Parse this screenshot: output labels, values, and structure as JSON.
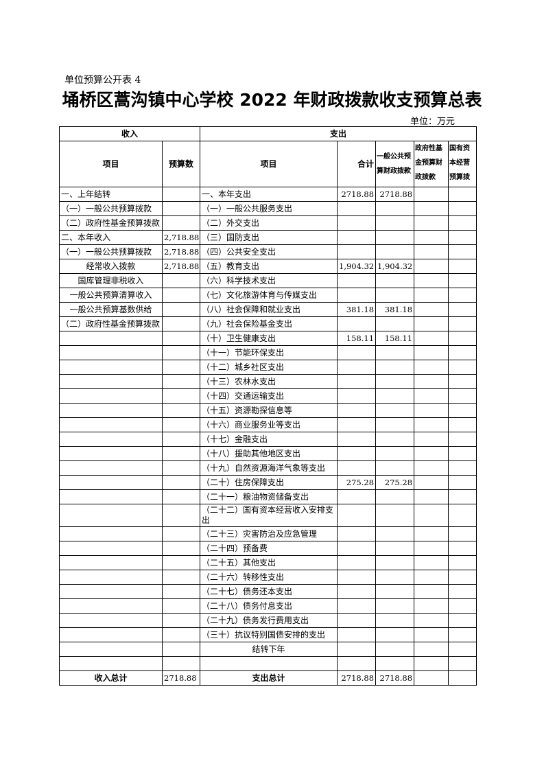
{
  "doc": {
    "tag": "单位预算公开表 4",
    "title": "埇桥区蒿沟镇中心学校 2022 年财政拨款收支预算总表",
    "unit": "单位：万元"
  },
  "headers": {
    "income": "收入",
    "expense": "支出",
    "income_item": "项目",
    "income_amount": "预算数",
    "expense_item": "项目",
    "total": "合计",
    "general": "一般公共预算财政拨款",
    "fund": "政府性基金预算财政拨款",
    "state": "国有资本经营预算拨"
  },
  "rows": [
    {
      "in_item": "一、上年结转",
      "in_amt": "",
      "ex_item": "一、本年支出",
      "total": "2718.88",
      "general": "2718.88"
    },
    {
      "in_item": "（一）一般公共预算拨款",
      "in_amt": "",
      "ex_item": "（一）一般公共服务支出",
      "total": "",
      "general": ""
    },
    {
      "in_item": "（二）政府性基金预算拨款",
      "in_amt": "",
      "ex_item": "（二）外交支出",
      "total": "",
      "general": ""
    },
    {
      "in_item": "二、本年收入",
      "in_amt": "2,718.88",
      "ex_item": "（三）国防支出",
      "total": "",
      "general": ""
    },
    {
      "in_item": "（一）一般公共预算拨款",
      "in_amt": "2,718.88",
      "ex_item": "（四）公共安全支出",
      "total": "",
      "general": ""
    },
    {
      "in_item": "经常收入拨款",
      "in_amt": "2,718.88",
      "ex_item": "（五）教育支出",
      "total": "1,904.32",
      "general": "1,904.32",
      "center": true
    },
    {
      "in_item": "国库管理非税收入",
      "in_amt": "",
      "ex_item": "（六）科学技术支出",
      "total": "",
      "general": "",
      "center": true
    },
    {
      "in_item": "一般公共预算清算收入",
      "in_amt": "",
      "ex_item": "（七）文化旅游体育与传媒支出",
      "total": "",
      "general": "",
      "center": true
    },
    {
      "in_item": "一般公共预算基数供给",
      "in_amt": "",
      "ex_item": "（八）社会保障和就业支出",
      "total": "381.18",
      "general": "381.18",
      "center": true
    },
    {
      "in_item": "（二）政府性基金预算拨款",
      "in_amt": "",
      "ex_item": "（九）社会保险基金支出",
      "total": "",
      "general": ""
    },
    {
      "in_item": "",
      "in_amt": "",
      "ex_item": "（十）卫生健康支出",
      "total": "158.11",
      "general": "158.11"
    },
    {
      "in_item": "",
      "in_amt": "",
      "ex_item": "（十一）节能环保支出",
      "total": "",
      "general": ""
    },
    {
      "in_item": "",
      "in_amt": "",
      "ex_item": "（十二）城乡社区支出",
      "total": "",
      "general": ""
    },
    {
      "in_item": "",
      "in_amt": "",
      "ex_item": "（十三）农林水支出",
      "total": "",
      "general": ""
    },
    {
      "in_item": "",
      "in_amt": "",
      "ex_item": "（十四）交通运输支出",
      "total": "",
      "general": ""
    },
    {
      "in_item": "",
      "in_amt": "",
      "ex_item": "（十五）资源勘探信息等",
      "total": "",
      "general": ""
    },
    {
      "in_item": "",
      "in_amt": "",
      "ex_item": "（十六）商业服务业等支出",
      "total": "",
      "general": ""
    },
    {
      "in_item": "",
      "in_amt": "",
      "ex_item": "（十七）金融支出",
      "total": "",
      "general": ""
    },
    {
      "in_item": "",
      "in_amt": "",
      "ex_item": "（十八）援助其他地区支出",
      "total": "",
      "general": ""
    },
    {
      "in_item": "",
      "in_amt": "",
      "ex_item": "（十九）自然资源海洋气象等支出",
      "total": "",
      "general": ""
    },
    {
      "in_item": "",
      "in_amt": "",
      "ex_item": "（二十）住房保障支出",
      "total": "275.28",
      "general": "275.28"
    },
    {
      "in_item": "",
      "in_amt": "",
      "ex_item": "（二十一）粮油物资储备支出",
      "total": "",
      "general": ""
    },
    {
      "in_item": "",
      "in_amt": "",
      "ex_item": "（二十二）国有资本经营收入安排支出",
      "total": "",
      "general": "",
      "tall": true
    },
    {
      "in_item": "",
      "in_amt": "",
      "ex_item": "（二十三）灾害防治及应急管理",
      "total": "",
      "general": ""
    },
    {
      "in_item": "",
      "in_amt": "",
      "ex_item": "（二十四）预备费",
      "total": "",
      "general": ""
    },
    {
      "in_item": "",
      "in_amt": "",
      "ex_item": "（二十五）其他支出",
      "total": "",
      "general": ""
    },
    {
      "in_item": "",
      "in_amt": "",
      "ex_item": "（二十六）转移性支出",
      "total": "",
      "general": ""
    },
    {
      "in_item": "",
      "in_amt": "",
      "ex_item": "（二十七）债务还本支出",
      "total": "",
      "general": ""
    },
    {
      "in_item": "",
      "in_amt": "",
      "ex_item": "（二十八）债务付息支出",
      "total": "",
      "general": ""
    },
    {
      "in_item": "",
      "in_amt": "",
      "ex_item": "（二十九）债务发行费用支出",
      "total": "",
      "general": ""
    },
    {
      "in_item": "",
      "in_amt": "",
      "ex_item": "（三十）抗议特别国债安排的支出",
      "total": "",
      "general": ""
    },
    {
      "in_item": "",
      "in_amt": "",
      "ex_item": "结转下年",
      "total": "",
      "general": "",
      "excenter": true
    },
    {
      "in_item": "",
      "in_amt": "",
      "ex_item": "",
      "total": "",
      "general": ""
    }
  ],
  "totals": {
    "in_label": "收入总计",
    "in_amt": "2718.88",
    "ex_label": "支出总计",
    "total": "2718.88",
    "general": "2718.88"
  }
}
